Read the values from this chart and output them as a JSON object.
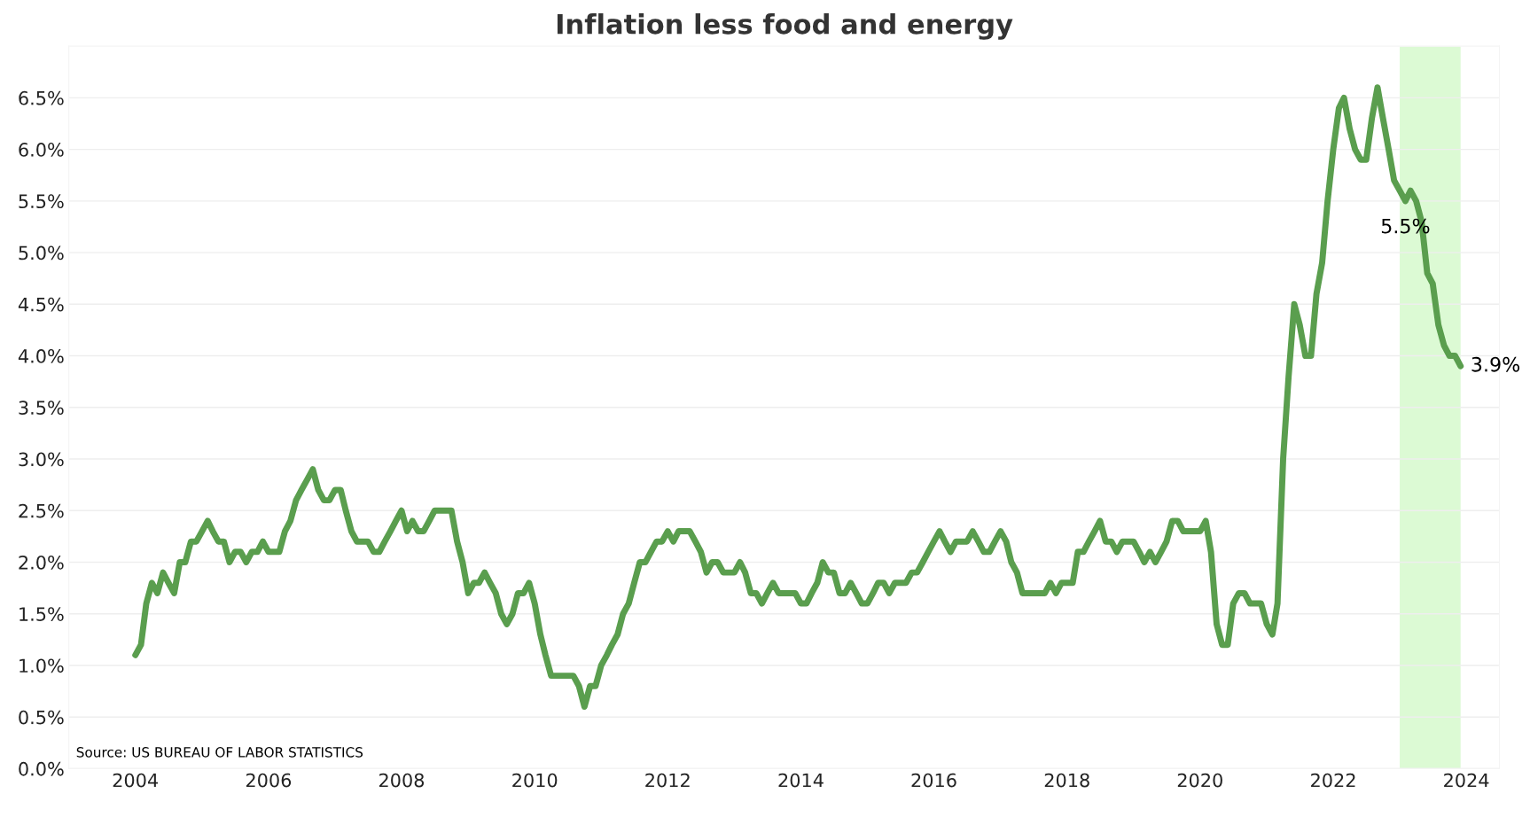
{
  "chart_data": {
    "type": "line",
    "title": "Inflation less food and energy",
    "x": [
      "2004-01",
      "2004-02",
      "2004-03",
      "2004-04",
      "2004-05",
      "2004-06",
      "2004-07",
      "2004-08",
      "2004-09",
      "2004-10",
      "2004-11",
      "2004-12",
      "2005-01",
      "2005-02",
      "2005-03",
      "2005-04",
      "2005-05",
      "2005-06",
      "2005-07",
      "2005-08",
      "2005-09",
      "2005-10",
      "2005-11",
      "2005-12",
      "2006-01",
      "2006-02",
      "2006-03",
      "2006-04",
      "2006-05",
      "2006-06",
      "2006-07",
      "2006-08",
      "2006-09",
      "2006-10",
      "2006-11",
      "2006-12",
      "2007-01",
      "2007-02",
      "2007-03",
      "2007-04",
      "2007-05",
      "2007-06",
      "2007-07",
      "2007-08",
      "2007-09",
      "2007-10",
      "2007-11",
      "2007-12",
      "2008-01",
      "2008-02",
      "2008-03",
      "2008-04",
      "2008-05",
      "2008-06",
      "2008-07",
      "2008-08",
      "2008-09",
      "2008-10",
      "2008-11",
      "2008-12",
      "2009-01",
      "2009-02",
      "2009-03",
      "2009-04",
      "2009-05",
      "2009-06",
      "2009-07",
      "2009-08",
      "2009-09",
      "2009-10",
      "2009-11",
      "2009-12",
      "2010-01",
      "2010-02",
      "2010-03",
      "2010-04",
      "2010-05",
      "2010-06",
      "2010-07",
      "2010-08",
      "2010-09",
      "2010-10",
      "2010-11",
      "2010-12",
      "2011-01",
      "2011-02",
      "2011-03",
      "2011-04",
      "2011-05",
      "2011-06",
      "2011-07",
      "2011-08",
      "2011-09",
      "2011-10",
      "2011-11",
      "2011-12",
      "2012-01",
      "2012-02",
      "2012-03",
      "2012-04",
      "2012-05",
      "2012-06",
      "2012-07",
      "2012-08",
      "2012-09",
      "2012-10",
      "2012-11",
      "2012-12",
      "2013-01",
      "2013-02",
      "2013-03",
      "2013-04",
      "2013-05",
      "2013-06",
      "2013-07",
      "2013-08",
      "2013-09",
      "2013-10",
      "2013-11",
      "2013-12",
      "2014-01",
      "2014-02",
      "2014-03",
      "2014-04",
      "2014-05",
      "2014-06",
      "2014-07",
      "2014-08",
      "2014-09",
      "2014-10",
      "2014-11",
      "2014-12",
      "2015-01",
      "2015-02",
      "2015-03",
      "2015-04",
      "2015-05",
      "2015-06",
      "2015-07",
      "2015-08",
      "2015-09",
      "2015-10",
      "2015-11",
      "2015-12",
      "2016-01",
      "2016-02",
      "2016-03",
      "2016-04",
      "2016-05",
      "2016-06",
      "2016-07",
      "2016-08",
      "2016-09",
      "2016-10",
      "2016-11",
      "2016-12",
      "2017-01",
      "2017-02",
      "2017-03",
      "2017-04",
      "2017-05",
      "2017-06",
      "2017-07",
      "2017-08",
      "2017-09",
      "2017-10",
      "2017-11",
      "2017-12",
      "2018-01",
      "2018-02",
      "2018-03",
      "2018-04",
      "2018-05",
      "2018-06",
      "2018-07",
      "2018-08",
      "2018-09",
      "2018-10",
      "2018-11",
      "2018-12",
      "2019-01",
      "2019-02",
      "2019-03",
      "2019-04",
      "2019-05",
      "2019-06",
      "2019-07",
      "2019-08",
      "2019-09",
      "2019-10",
      "2019-11",
      "2019-12",
      "2020-01",
      "2020-02",
      "2020-03",
      "2020-04",
      "2020-05",
      "2020-06",
      "2020-07",
      "2020-08",
      "2020-09",
      "2020-10",
      "2020-11",
      "2020-12",
      "2021-01",
      "2021-02",
      "2021-03",
      "2021-04",
      "2021-05",
      "2021-06",
      "2021-07",
      "2021-08",
      "2021-09",
      "2021-10",
      "2021-11",
      "2021-12",
      "2022-01",
      "2022-02",
      "2022-03",
      "2022-04",
      "2022-05",
      "2022-06",
      "2022-07",
      "2022-08",
      "2022-09",
      "2022-10",
      "2022-11",
      "2022-12",
      "2023-01",
      "2023-02",
      "2023-03",
      "2023-04",
      "2023-05",
      "2023-06",
      "2023-07",
      "2023-08",
      "2023-09",
      "2023-10",
      "2023-11",
      "2023-12"
    ],
    "series": [
      {
        "color": "#5a9e4e",
        "values": [
          1.1,
          1.2,
          1.6,
          1.8,
          1.7,
          1.9,
          1.8,
          1.7,
          2.0,
          2.0,
          2.2,
          2.2,
          2.3,
          2.4,
          2.3,
          2.2,
          2.2,
          2.0,
          2.1,
          2.1,
          2.0,
          2.1,
          2.1,
          2.2,
          2.1,
          2.1,
          2.1,
          2.3,
          2.4,
          2.6,
          2.7,
          2.8,
          2.9,
          2.7,
          2.6,
          2.6,
          2.7,
          2.7,
          2.5,
          2.3,
          2.2,
          2.2,
          2.2,
          2.1,
          2.1,
          2.2,
          2.3,
          2.4,
          2.5,
          2.3,
          2.4,
          2.3,
          2.3,
          2.4,
          2.5,
          2.5,
          2.5,
          2.5,
          2.2,
          2.0,
          1.7,
          1.8,
          1.8,
          1.9,
          1.8,
          1.7,
          1.5,
          1.4,
          1.5,
          1.7,
          1.7,
          1.8,
          1.6,
          1.3,
          1.1,
          0.9,
          0.9,
          0.9,
          0.9,
          0.9,
          0.8,
          0.6,
          0.8,
          0.8,
          1.0,
          1.1,
          1.2,
          1.3,
          1.5,
          1.6,
          1.8,
          2.0,
          2.0,
          2.1,
          2.2,
          2.2,
          2.3,
          2.2,
          2.3,
          2.3,
          2.3,
          2.2,
          2.1,
          1.9,
          2.0,
          2.0,
          1.9,
          1.9,
          1.9,
          2.0,
          1.9,
          1.7,
          1.7,
          1.6,
          1.7,
          1.8,
          1.7,
          1.7,
          1.7,
          1.7,
          1.6,
          1.6,
          1.7,
          1.8,
          2.0,
          1.9,
          1.9,
          1.7,
          1.7,
          1.8,
          1.7,
          1.6,
          1.6,
          1.7,
          1.8,
          1.8,
          1.7,
          1.8,
          1.8,
          1.8,
          1.9,
          1.9,
          2.0,
          2.1,
          2.2,
          2.3,
          2.2,
          2.1,
          2.2,
          2.2,
          2.2,
          2.3,
          2.2,
          2.1,
          2.1,
          2.2,
          2.3,
          2.2,
          2.0,
          1.9,
          1.7,
          1.7,
          1.7,
          1.7,
          1.7,
          1.8,
          1.7,
          1.8,
          1.8,
          1.8,
          2.1,
          2.1,
          2.2,
          2.3,
          2.4,
          2.2,
          2.2,
          2.1,
          2.2,
          2.2,
          2.2,
          2.1,
          2.0,
          2.1,
          2.0,
          2.1,
          2.2,
          2.4,
          2.4,
          2.3,
          2.3,
          2.3,
          2.3,
          2.4,
          2.1,
          1.4,
          1.2,
          1.2,
          1.6,
          1.7,
          1.7,
          1.6,
          1.6,
          1.6,
          1.4,
          1.3,
          1.6,
          3.0,
          3.8,
          4.5,
          4.3,
          4.0,
          4.0,
          4.6,
          4.9,
          5.5,
          6.0,
          6.4,
          6.5,
          6.2,
          6.0,
          5.9,
          5.9,
          6.3,
          6.6,
          6.3,
          6.0,
          5.7,
          5.6,
          5.5,
          5.6,
          5.5,
          5.3,
          4.8,
          4.7,
          4.3,
          4.1,
          4.0,
          4.0,
          3.9
        ]
      }
    ],
    "xlim": [
      "2003-01",
      "2024-07"
    ],
    "xticks": [
      {
        "value": "2004",
        "label": "2004"
      },
      {
        "value": "2006",
        "label": "2006"
      },
      {
        "value": "2008",
        "label": "2008"
      },
      {
        "value": "2010",
        "label": "2010"
      },
      {
        "value": "2012",
        "label": "2012"
      },
      {
        "value": "2014",
        "label": "2014"
      },
      {
        "value": "2016",
        "label": "2016"
      },
      {
        "value": "2018",
        "label": "2018"
      },
      {
        "value": "2020",
        "label": "2020"
      },
      {
        "value": "2022",
        "label": "2022"
      },
      {
        "value": "2024",
        "label": "2024"
      }
    ],
    "ylim": [
      0,
      7.0
    ],
    "yticks": [
      {
        "value": 0,
        "label": "0.0%"
      },
      {
        "value": 0.5,
        "label": "0.5%"
      },
      {
        "value": 1.0,
        "label": "1.0%"
      },
      {
        "value": 1.5,
        "label": "1.5%"
      },
      {
        "value": 2.0,
        "label": "2.0%"
      },
      {
        "value": 2.5,
        "label": "2.5%"
      },
      {
        "value": 3.0,
        "label": "3.0%"
      },
      {
        "value": 3.5,
        "label": "3.5%"
      },
      {
        "value": 4.0,
        "label": "4.0%"
      },
      {
        "value": 4.5,
        "label": "4.5%"
      },
      {
        "value": 5.0,
        "label": "5.0%"
      },
      {
        "value": 5.5,
        "label": "5.5%"
      },
      {
        "value": 6.0,
        "label": "6.0%"
      },
      {
        "value": 6.5,
        "label": "6.5%"
      }
    ],
    "bands": [
      {
        "axis": "x",
        "from": "2023-01",
        "to": "2023-12",
        "color": "#dcfad4"
      }
    ],
    "annotations": [
      {
        "text": "5.5%",
        "x": "2023-02",
        "y": 5.5
      },
      {
        "text": "3.9%",
        "x": "2023-12",
        "y": 3.9
      },
      "Source: US BUREAU OF LABOR STATISTICS"
    ],
    "grid": "y",
    "legend": false,
    "line_style": "solid",
    "marker": "none"
  }
}
